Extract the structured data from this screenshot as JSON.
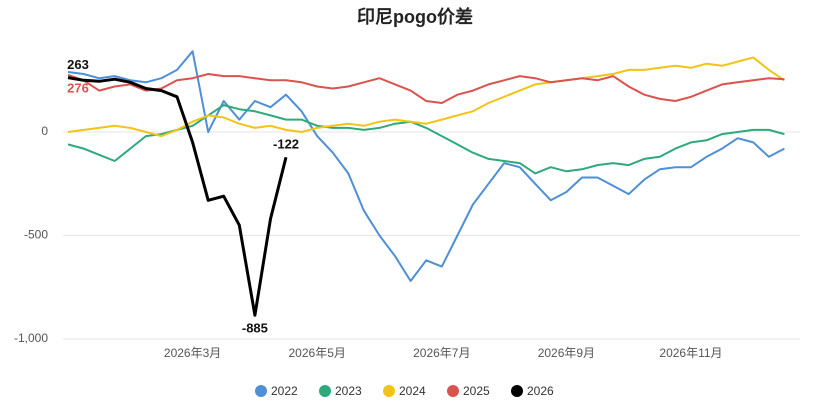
{
  "chart_data": {
    "type": "line",
    "title": "印尼pogo价差",
    "categories": [
      null,
      null,
      null,
      null,
      null,
      null,
      null,
      null,
      "2026年3月",
      null,
      null,
      null,
      null,
      null,
      null,
      null,
      "2026年5月",
      null,
      null,
      null,
      null,
      null,
      null,
      null,
      "2026年7月",
      null,
      null,
      null,
      null,
      null,
      null,
      null,
      "2026年9月",
      null,
      null,
      null,
      null,
      null,
      null,
      null,
      "2026年11月",
      null,
      null,
      null,
      null,
      null,
      null,
      null
    ],
    "ylim": [
      -1000,
      450
    ],
    "yticks": [
      {
        "value": -1000,
        "label": "-1,000"
      },
      -500,
      0
    ],
    "grid": true,
    "legend": "bottom",
    "series": [
      {
        "name": "2022",
        "color": "#4e8fd6",
        "values": [
          290,
          280,
          260,
          270,
          250,
          240,
          260,
          300,
          390,
          0,
          150,
          60,
          150,
          120,
          180,
          100,
          -20,
          -100,
          -200,
          -380,
          -500,
          -600,
          -720,
          -620,
          -650,
          -500,
          -350,
          -250,
          -150,
          -170,
          -250,
          -330,
          -290,
          -220,
          -220,
          -260,
          -300,
          -230,
          -180,
          -170,
          -170,
          -120,
          -80,
          -30,
          -50,
          -120,
          -80,
          null
        ]
      },
      {
        "name": "2023",
        "color": "#2eaa7a",
        "values": [
          -60,
          -80,
          -110,
          -140,
          -80,
          -20,
          -10,
          10,
          30,
          80,
          130,
          110,
          100,
          80,
          60,
          60,
          30,
          20,
          20,
          10,
          20,
          40,
          50,
          20,
          -20,
          -60,
          -100,
          -130,
          -140,
          -150,
          -200,
          -170,
          -190,
          -180,
          -160,
          -150,
          -160,
          -130,
          -120,
          -80,
          -50,
          -40,
          -10,
          0,
          10,
          10,
          -10,
          null
        ]
      },
      {
        "name": "2024",
        "color": "#f2c318",
        "values": [
          0,
          10,
          20,
          30,
          20,
          0,
          -20,
          10,
          50,
          80,
          70,
          40,
          20,
          30,
          10,
          0,
          20,
          30,
          40,
          30,
          50,
          60,
          50,
          40,
          60,
          80,
          100,
          140,
          170,
          200,
          230,
          240,
          250,
          260,
          270,
          280,
          300,
          300,
          310,
          320,
          310,
          330,
          320,
          340,
          360,
          300,
          250,
          null
        ]
      },
      {
        "name": "2025",
        "color": "#d9534f",
        "values": [
          276,
          250,
          200,
          220,
          230,
          200,
          210,
          250,
          260,
          280,
          270,
          270,
          260,
          250,
          250,
          240,
          220,
          210,
          220,
          240,
          260,
          230,
          200,
          150,
          140,
          180,
          200,
          230,
          250,
          270,
          260,
          240,
          250,
          260,
          250,
          270,
          220,
          180,
          160,
          150,
          170,
          200,
          230,
          240,
          250,
          260,
          255,
          null
        ],
        "value_labels": [
          "276"
        ]
      },
      {
        "name": "2026",
        "color": "#000000",
        "values": [
          263,
          250,
          245,
          255,
          240,
          210,
          200,
          170,
          -50,
          -330,
          -310,
          -450,
          -885,
          -420,
          -122,
          null,
          null,
          null,
          null,
          null,
          null,
          null,
          null,
          null,
          null,
          null,
          null,
          null,
          null,
          null,
          null,
          null,
          null,
          null,
          null,
          null,
          null,
          null,
          null,
          null,
          null,
          null,
          null,
          null,
          null,
          null,
          null,
          null
        ],
        "value_labels": [
          "263",
          null,
          null,
          null,
          null,
          null,
          null,
          null,
          null,
          null,
          null,
          null,
          "-885",
          null,
          "-122"
        ]
      }
    ]
  }
}
